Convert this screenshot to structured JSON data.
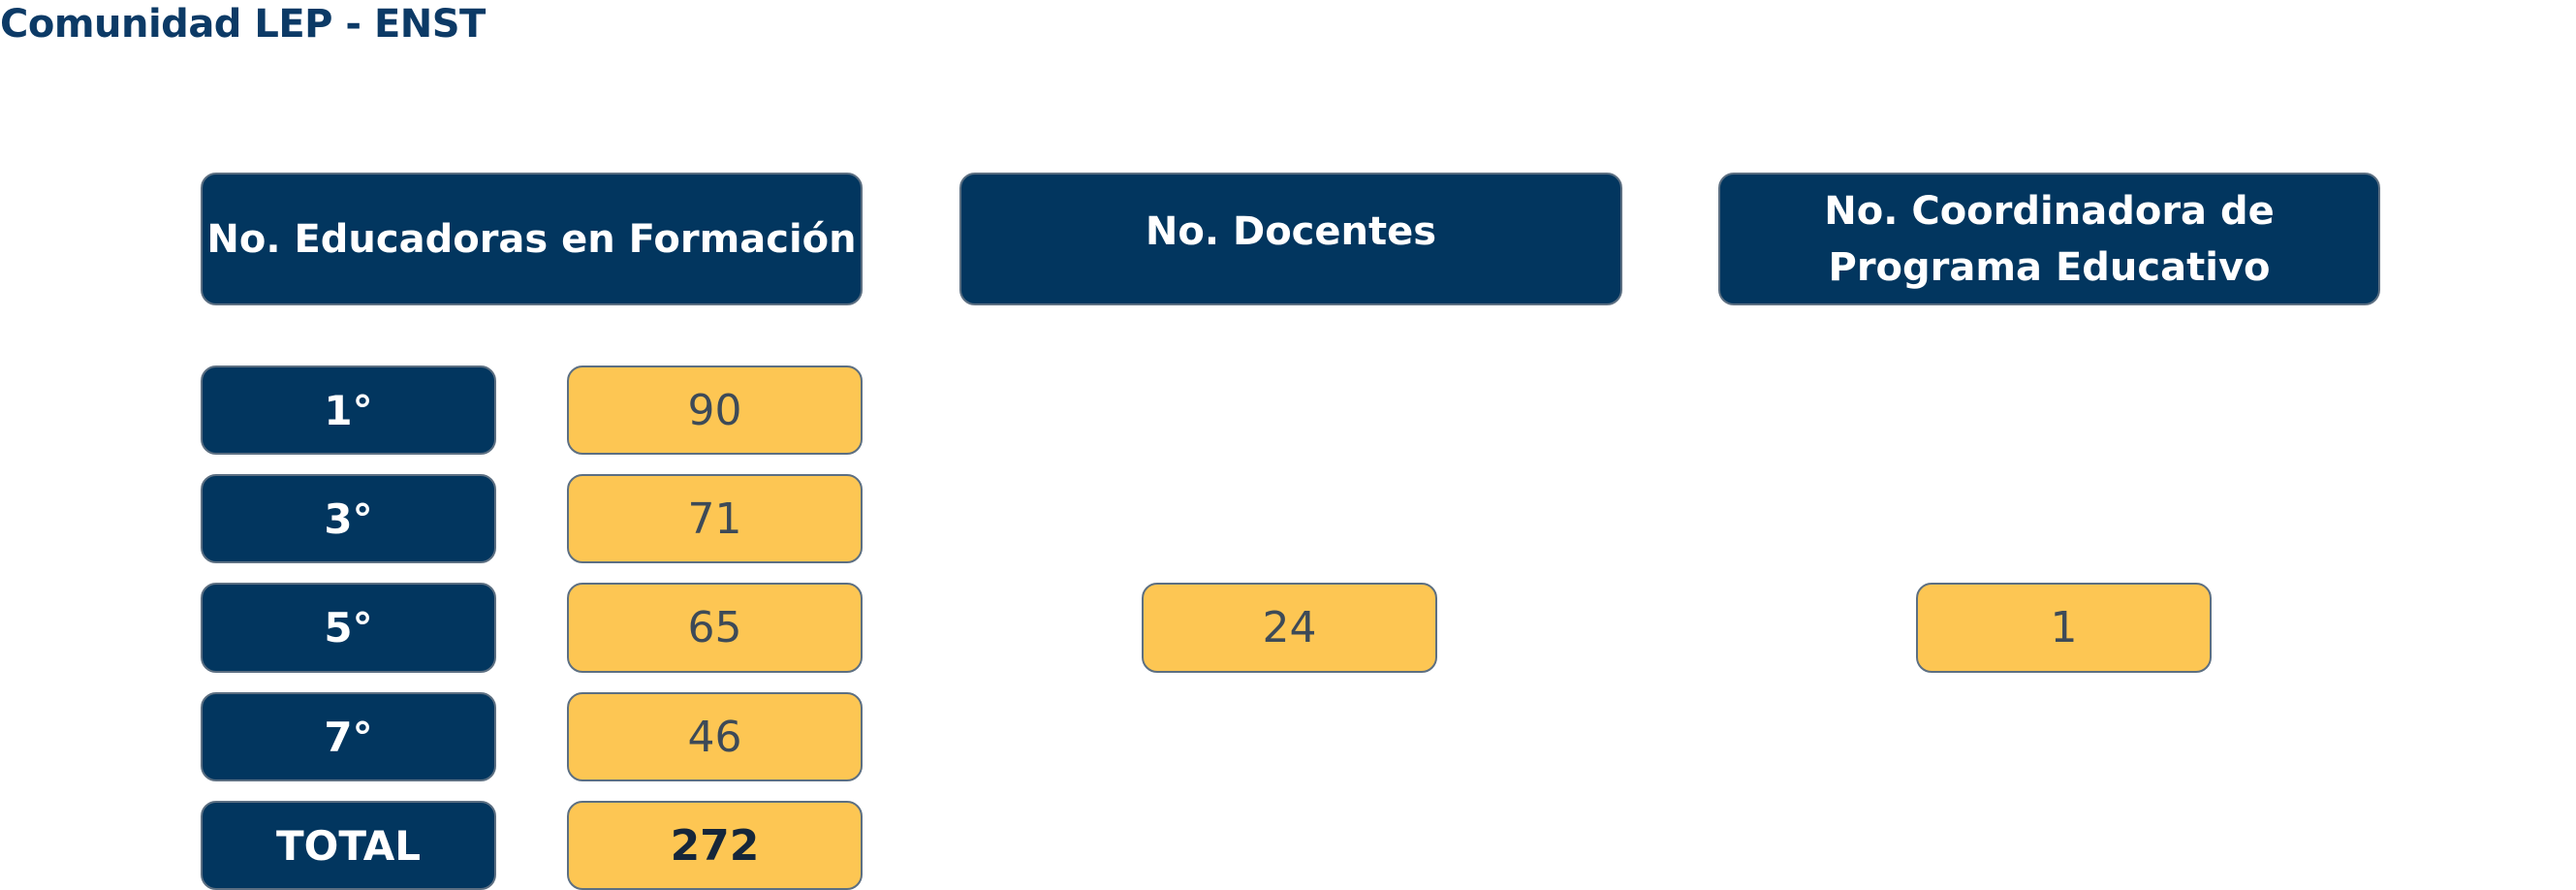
{
  "title": "Comunidad LEP - ENST",
  "headers": {
    "educadoras": "No. Educadoras en Formación",
    "docentes": "No. Docentes",
    "coordinadora": "No. Coordinadora de Programa Educativo"
  },
  "rows": [
    {
      "label": "1°",
      "value": "90"
    },
    {
      "label": "3°",
      "value": "71"
    },
    {
      "label": "5°",
      "value": "65"
    },
    {
      "label": "7°",
      "value": "46"
    },
    {
      "label": "TOTAL",
      "value": "272"
    }
  ],
  "docentes_value": "24",
  "coordinadora_value": "1",
  "colors": {
    "navy": "#02365f",
    "yellow": "#fdc653",
    "title": "#0c3a66"
  }
}
